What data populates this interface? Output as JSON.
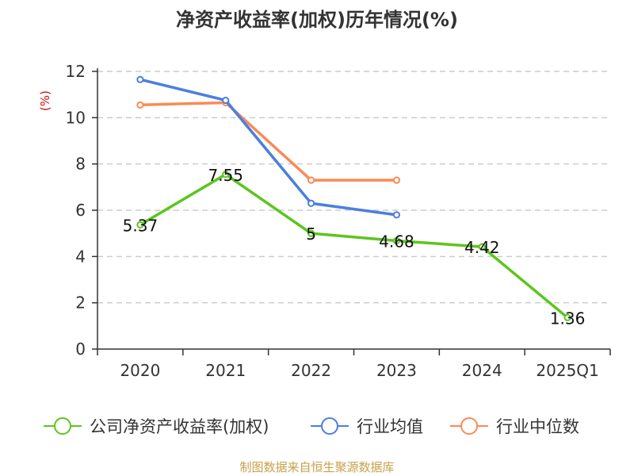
{
  "chart_data": {
    "type": "line",
    "title": "净资产收益率(加权)历年情况(%)",
    "ylabel": "(%)",
    "xlabel": "",
    "categories": [
      "2020",
      "2021",
      "2022",
      "2023",
      "2024",
      "2025Q1"
    ],
    "ylim": [
      0,
      12
    ],
    "yticks": [
      0,
      2,
      4,
      6,
      8,
      10,
      12
    ],
    "grid": true,
    "legend_position": "bottom",
    "series": [
      {
        "name": "公司净资产收益率(加权)",
        "color": "#5cc51e",
        "values": [
          5.37,
          7.55,
          5,
          4.68,
          4.42,
          1.36
        ],
        "labels": [
          "5.37",
          "7.55",
          "5",
          "4.68",
          "4.42",
          "1.36"
        ]
      },
      {
        "name": "行业均值",
        "color": "#4b7fde",
        "values": [
          11.65,
          10.75,
          6.3,
          5.8,
          null,
          null
        ]
      },
      {
        "name": "行业中位数",
        "color": "#fa8a55",
        "values": [
          10.55,
          10.65,
          7.3,
          7.3,
          null,
          null
        ]
      }
    ]
  },
  "source": "制图数据来自恒生聚源数据库",
  "colors": {
    "source": "#c8a04a",
    "ylabel": "#cc1111",
    "grid": "#cccccc",
    "axis": "#333333"
  }
}
